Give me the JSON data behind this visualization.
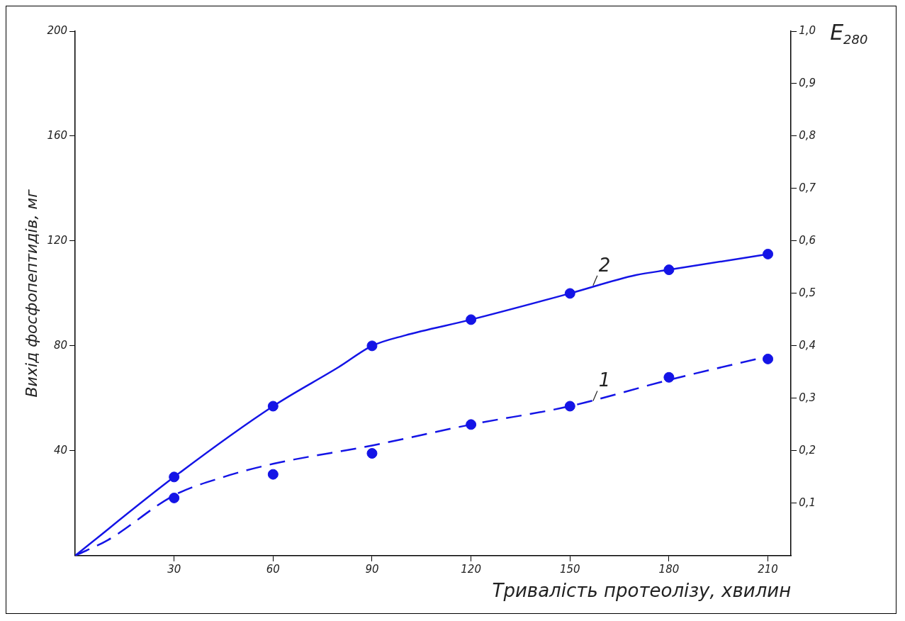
{
  "chart_data": {
    "type": "line",
    "xlabel": "Тривалість протеолізу, хвилин",
    "ylabel": "Вихід фосфопептидів, мг",
    "y2label": "E$_{280}$",
    "xlim": [
      0,
      217
    ],
    "xticks": [
      30,
      60,
      90,
      120,
      150,
      180,
      210
    ],
    "ylim": [
      0,
      200
    ],
    "yticks": [
      40,
      80,
      120,
      160,
      200
    ],
    "y2lim": [
      0,
      1
    ],
    "y2ticks": [
      {
        "value": 0.1,
        "label": "0,1"
      },
      {
        "value": 0.2,
        "label": "0,2"
      },
      {
        "value": 0.3,
        "label": "0,3"
      },
      {
        "value": 0.4,
        "label": "0,4"
      },
      {
        "value": 0.5,
        "label": "0,5"
      },
      {
        "value": 0.6,
        "label": "0,6"
      },
      {
        "value": 0.7,
        "label": "0,7"
      },
      {
        "value": 0.8,
        "label": "0,8"
      },
      {
        "value": 0.9,
        "label": "0,9"
      },
      {
        "value": 1,
        "label": "1,0"
      }
    ],
    "grid": false,
    "legend": false,
    "series": [
      {
        "type": "line",
        "color": "#1414e6",
        "line_style": "solid",
        "marker": "none",
        "x": [
          0,
          30,
          60,
          80,
          90,
          100,
          120,
          150,
          170,
          180,
          210
        ],
        "values": [
          0,
          30,
          57,
          72,
          80,
          84,
          90,
          100,
          107,
          109,
          115
        ]
      },
      {
        "type": "line",
        "color": "#1414e6",
        "line_style": "dashed",
        "marker": "none",
        "x": [
          0,
          10,
          30,
          45,
          60,
          90,
          120,
          150,
          180,
          210
        ],
        "values": [
          0,
          6,
          23,
          30,
          35,
          42,
          50,
          57,
          67,
          76
        ]
      },
      {
        "type": "scatter",
        "color": "#1414e6",
        "marker": "circle",
        "x": [
          30,
          60,
          90,
          120,
          150,
          180,
          210
        ],
        "values": [
          30,
          57,
          80,
          90,
          100,
          109,
          115
        ]
      },
      {
        "type": "scatter",
        "color": "#1414e6",
        "marker": "circle",
        "x": [
          30,
          60,
          90,
          120,
          150,
          180,
          210
        ],
        "values": [
          22,
          31,
          39,
          50,
          57,
          68,
          75
        ]
      }
    ],
    "annotations": [
      {
        "text": "2",
        "x": 157,
        "y": 103
      },
      {
        "text": "1",
        "x": 157,
        "y": 59
      }
    ]
  }
}
